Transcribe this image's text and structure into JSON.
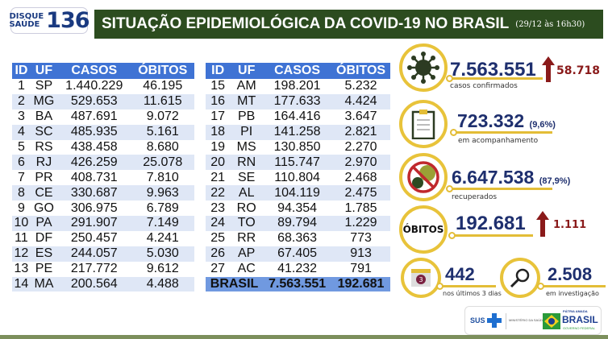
{
  "logo": {
    "line1": "DISQUE",
    "line2": "SAÚDE",
    "number": "136"
  },
  "header": {
    "title": "SITUAÇÃO EPIDEMIOLÓGICA DA COVID-19 NO BRASIL",
    "date": "(29/12 às 16h30)"
  },
  "table": {
    "columns": [
      "ID",
      "UF",
      "CASOS",
      "ÓBITOS"
    ],
    "left_rows": [
      [
        "1",
        "SP",
        "1.440.229",
        "46.195"
      ],
      [
        "2",
        "MG",
        "529.653",
        "11.615"
      ],
      [
        "3",
        "BA",
        "487.691",
        "9.072"
      ],
      [
        "4",
        "SC",
        "485.935",
        "5.161"
      ],
      [
        "5",
        "RS",
        "438.458",
        "8.680"
      ],
      [
        "6",
        "RJ",
        "426.259",
        "25.078"
      ],
      [
        "7",
        "PR",
        "408.731",
        "7.810"
      ],
      [
        "8",
        "CE",
        "330.687",
        "9.963"
      ],
      [
        "9",
        "GO",
        "306.975",
        "6.789"
      ],
      [
        "10",
        "PA",
        "291.907",
        "7.149"
      ],
      [
        "11",
        "DF",
        "250.457",
        "4.241"
      ],
      [
        "12",
        "ES",
        "244.057",
        "5.030"
      ],
      [
        "13",
        "PE",
        "217.772",
        "9.612"
      ],
      [
        "14",
        "MA",
        "200.564",
        "4.488"
      ]
    ],
    "right_rows": [
      [
        "15",
        "AM",
        "198.201",
        "5.232"
      ],
      [
        "16",
        "MT",
        "177.633",
        "4.424"
      ],
      [
        "17",
        "PB",
        "164.416",
        "3.647"
      ],
      [
        "18",
        "PI",
        "141.258",
        "2.821"
      ],
      [
        "19",
        "MS",
        "130.850",
        "2.270"
      ],
      [
        "20",
        "RN",
        "115.747",
        "2.970"
      ],
      [
        "21",
        "SE",
        "110.804",
        "2.468"
      ],
      [
        "22",
        "AL",
        "104.119",
        "2.475"
      ],
      [
        "23",
        "RO",
        "94.354",
        "1.785"
      ],
      [
        "24",
        "TO",
        "89.794",
        "1.229"
      ],
      [
        "25",
        "RR",
        "68.363",
        "773"
      ],
      [
        "26",
        "AP",
        "67.405",
        "913"
      ],
      [
        "27",
        "AC",
        "41.232",
        "791"
      ]
    ],
    "total": {
      "label": "BRASIL",
      "casos": "7.563.551",
      "obitos": "192.681"
    }
  },
  "stats": {
    "confirmed": {
      "value": "7.563.551",
      "increase": "58.718",
      "label": "casos confirmados",
      "icon": "virus-icon"
    },
    "monitoring": {
      "value": "723.332",
      "pct": "(9,6%)",
      "label": "em acompanhamento",
      "icon": "clipboard-icon"
    },
    "recovered": {
      "value": "6.647.538",
      "pct": "(87,9%)",
      "label": "recuperados",
      "icon": "no-virus-icon"
    },
    "deaths": {
      "badge": "ÓBITOS",
      "value": "192.681",
      "increase": "1.111"
    },
    "last3": {
      "value": "442",
      "label": "nos últimos 3 dias",
      "calendar": "3"
    },
    "investigation": {
      "value": "2.508",
      "label": "em investigação"
    }
  },
  "footer": {
    "sus": "SUS",
    "ministry": "MINISTÉRIO DA SAÚDE",
    "brand_top": "PÁTRIA AMADA",
    "brand": "BRASIL",
    "brand_sub": "GOVERNO FEDERAL"
  },
  "colors": {
    "banner": "#2c4c1f",
    "table_header": "#3f73d4",
    "row_alt": "#dfe7f6",
    "number": "#1e2f6e",
    "gold": "#e3bd37",
    "red": "#8a1a1a"
  }
}
